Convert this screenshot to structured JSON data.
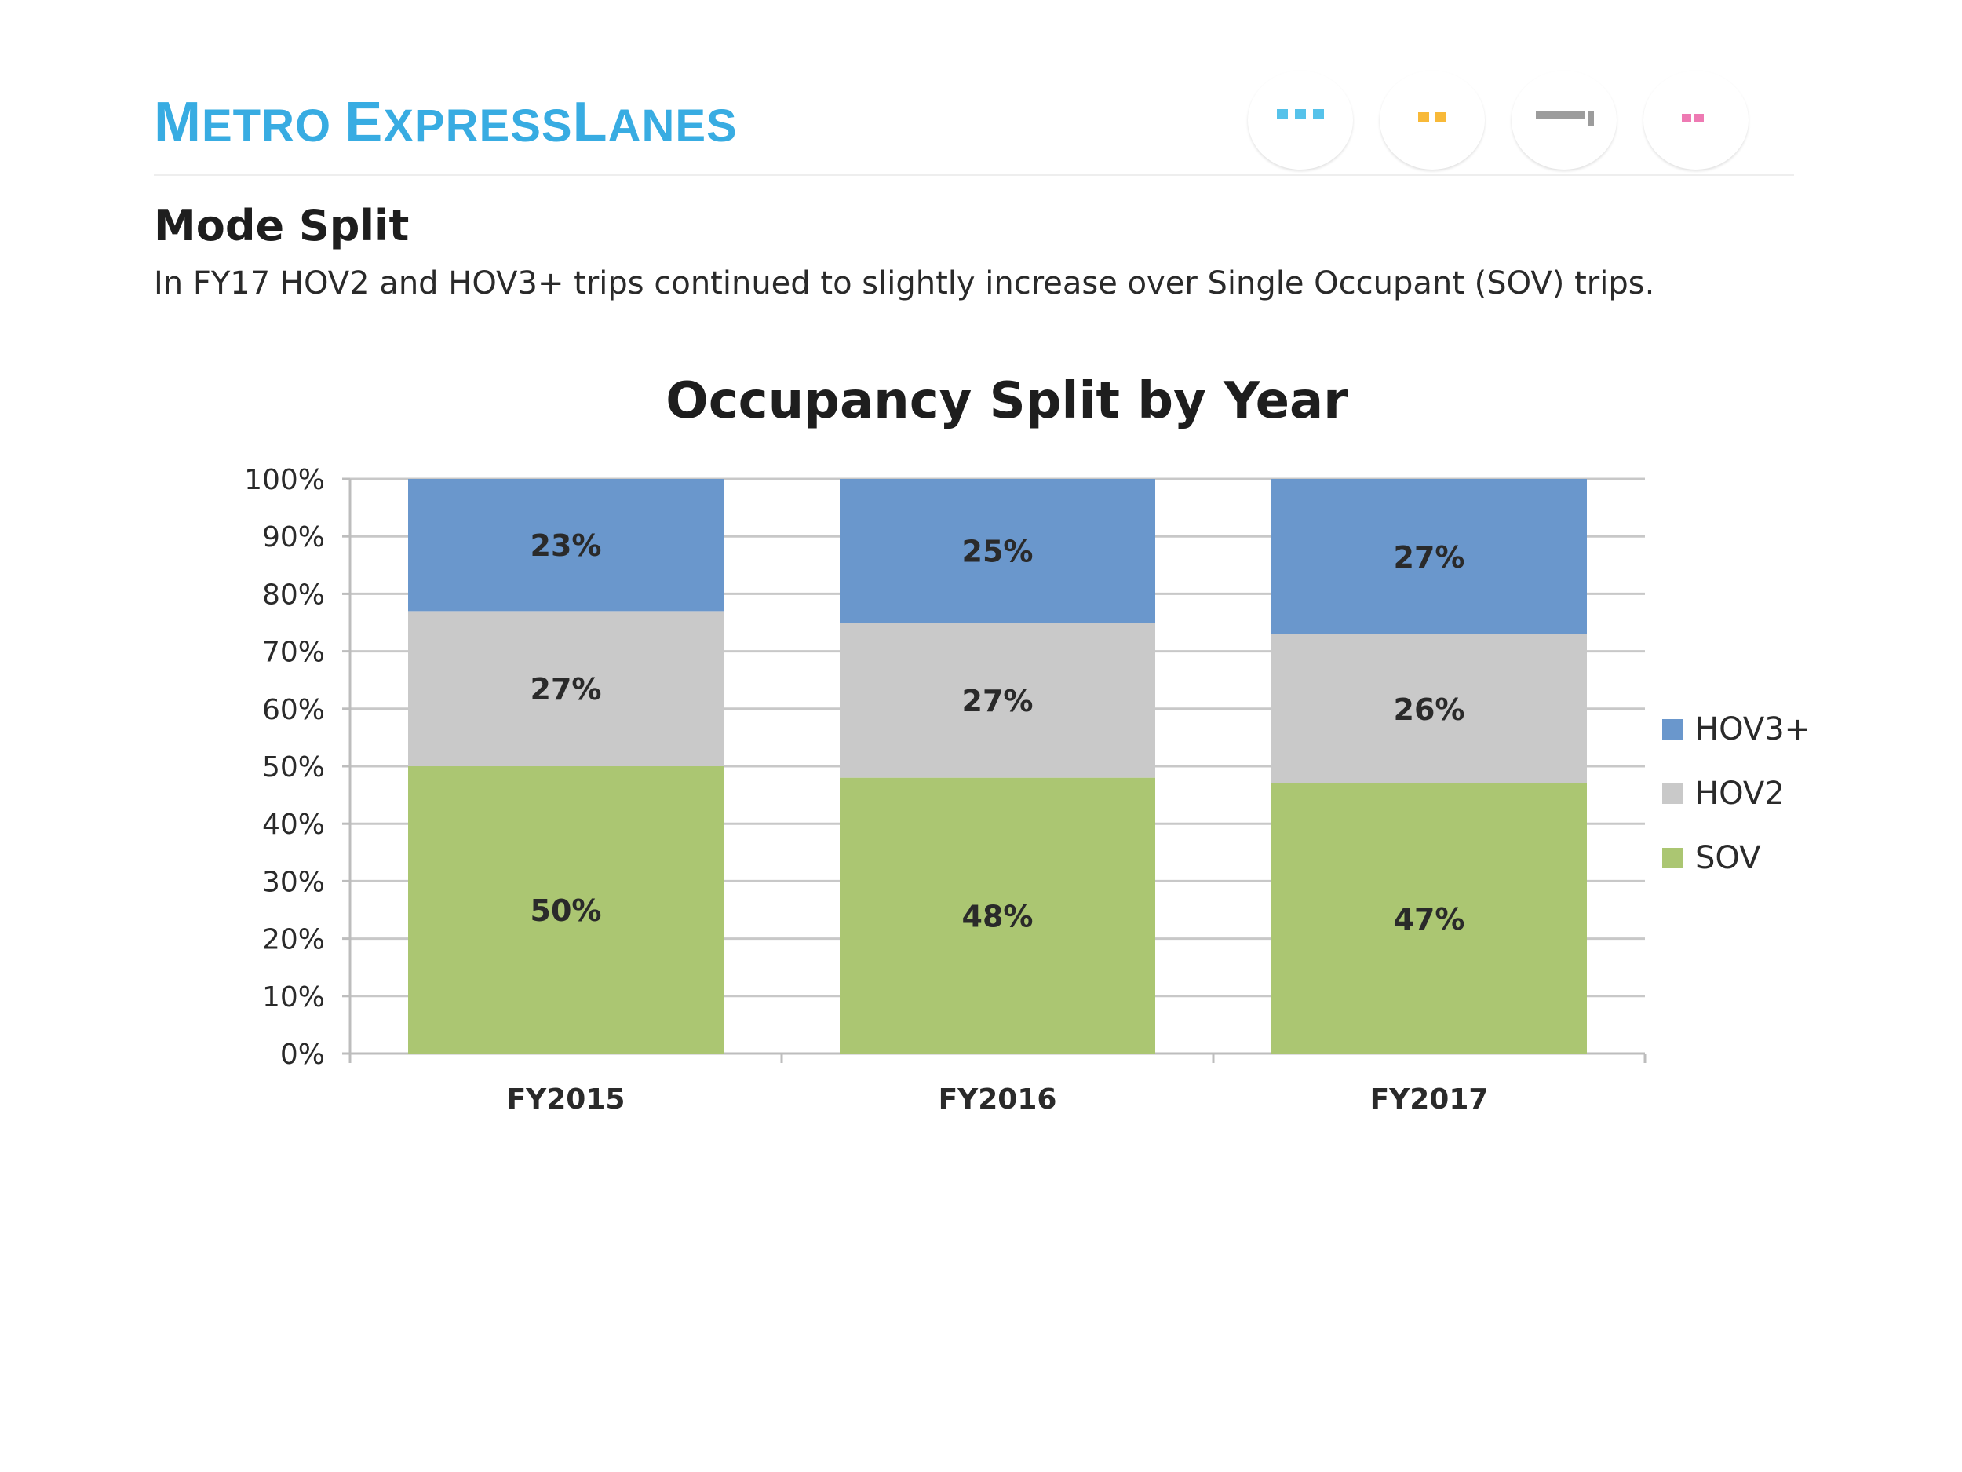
{
  "header": {
    "brand_parts": [
      {
        "cap": "M",
        "rest": "ETRO "
      },
      {
        "cap": "E",
        "rest": "XPRESS"
      },
      {
        "cap": "L",
        "rest": "ANES"
      }
    ],
    "badges": [
      {
        "icon": "carpool-van-icon",
        "color": "#56c2ea"
      },
      {
        "icon": "car-icon",
        "color": "#f8b938"
      },
      {
        "icon": "bus-icon",
        "color": "#9c9c9c"
      },
      {
        "icon": "car-icon",
        "color": "#ee7ab3"
      }
    ]
  },
  "section": {
    "title": "Mode Split",
    "description": "In FY17 HOV2 and HOV3+ trips continued to slightly increase over Single Occupant (SOV) trips."
  },
  "chart_data": {
    "type": "bar",
    "stacked": true,
    "title": "Occupancy Split by Year",
    "categories": [
      "FY2015",
      "FY2016",
      "FY2017"
    ],
    "series": [
      {
        "name": "SOV",
        "color": "#abc672",
        "values": [
          50,
          48,
          47
        ],
        "labels": [
          "50%",
          "48%",
          "47%"
        ]
      },
      {
        "name": "HOV2",
        "color": "#c9c9c9",
        "values": [
          27,
          27,
          26
        ],
        "labels": [
          "27%",
          "27%",
          "26%"
        ]
      },
      {
        "name": "HOV3+",
        "color": "#6a97cc",
        "values": [
          23,
          25,
          27
        ],
        "labels": [
          "23%",
          "25%",
          "27%"
        ]
      }
    ],
    "legend_order": [
      "HOV3+",
      "HOV2",
      "SOV"
    ],
    "y_ticks": [
      "0%",
      "10%",
      "20%",
      "30%",
      "40%",
      "50%",
      "60%",
      "70%",
      "80%",
      "90%",
      "100%"
    ],
    "ylim": [
      0,
      100
    ],
    "grid": true,
    "legend_position": "right"
  }
}
